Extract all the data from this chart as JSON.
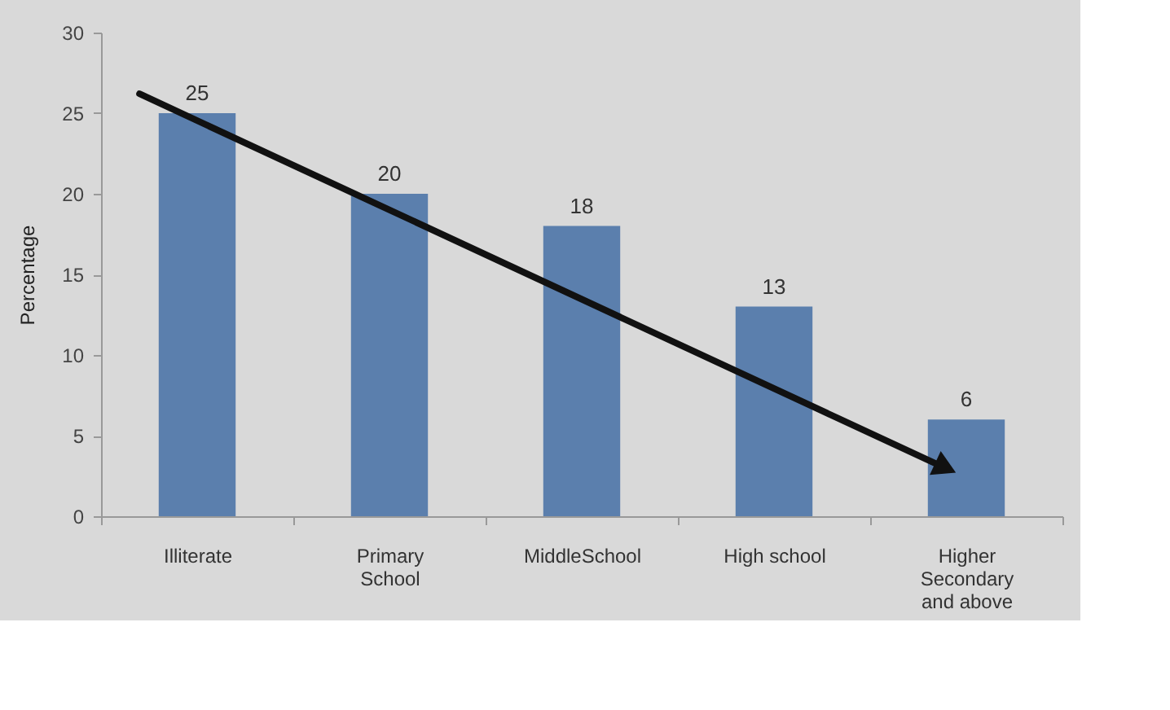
{
  "chart_data": {
    "type": "bar",
    "ylabel": "Percentage",
    "categories": [
      "Illiterate",
      "Primary School",
      "MiddleSchool",
      "High school",
      "Higher Secondary and above"
    ],
    "values": [
      25,
      20,
      18,
      13,
      6
    ],
    "color": "#5b7fad",
    "ylim": [
      0,
      30
    ],
    "yticks": [
      0,
      5,
      10,
      15,
      20,
      25,
      30
    ],
    "data_labels": true
  }
}
